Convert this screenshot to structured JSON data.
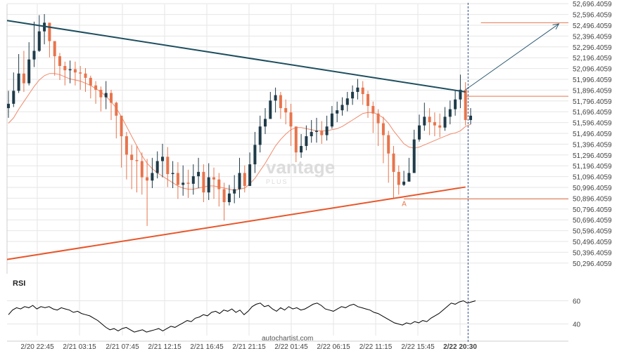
{
  "watermark": {
    "brand": "vantage",
    "sub": "PLUS"
  },
  "footer": {
    "source": "autochartist.com"
  },
  "colors": {
    "candle_up": "#1f3b49",
    "candle_down": "#e8744c",
    "resistance": "#1d4e5f",
    "support": "#e8562a",
    "ma": "#f08a6c",
    "level_line": "#e8744c",
    "projection": "#2d5b73",
    "rsi_line": "#000000",
    "grid": "#e6e6e6",
    "axis_text": "#444444",
    "now_line": "#2d4e8a"
  },
  "chart_data": [
    {
      "type": "candlestick",
      "title": "",
      "y_tick_labels": [
        "52,696.4059",
        "52,596.4059",
        "52,496.4059",
        "52,396.4059",
        "52,296.4059",
        "52,196.4059",
        "52,096.4059",
        "51,996.4059",
        "51,896.4059",
        "51,796.4059",
        "51,696.4059",
        "51,596.4059",
        "51,496.4059",
        "51,396.4059",
        "51,296.4059",
        "51,196.4059",
        "51,096.4059",
        "50,996.4059",
        "50,896.4059",
        "50,796.4059",
        "50,696.4059",
        "50,596.4059",
        "50,496.4059",
        "50,396.4059",
        "50,296.4059"
      ],
      "ylim": [
        50250,
        52740
      ],
      "x_tick_labels": [
        "2/20 22:45",
        "2/21 03:15",
        "2/21 07:45",
        "2/21 12:15",
        "2/21 16:45",
        "2/21 21:15",
        "2/22 01:45",
        "2/22 06:15",
        "2/22 11:15",
        "2/22 15:45",
        "2/22 20:30"
      ],
      "current_time_label": "2/22 20:30",
      "grid": true,
      "price_series": {
        "name": "",
        "close": [
          51770,
          51890,
          52050,
          51960,
          52180,
          52260,
          52440,
          52520,
          52350,
          52210,
          52120,
          52080,
          52090,
          52060,
          52050,
          52010,
          51940,
          51900,
          51830,
          51870,
          51780,
          51660,
          51470,
          51300,
          51250,
          51240,
          51090,
          51060,
          51130,
          51240,
          51280,
          51120,
          51130,
          51020,
          51040,
          51030,
          51100,
          51140,
          50950,
          51090,
          51070,
          50980,
          50860,
          50940,
          50980,
          51130,
          51010,
          51210,
          51390,
          51560,
          51630,
          51800,
          51850,
          51730,
          51690,
          51560,
          51320,
          51380,
          51470,
          51510,
          51520,
          51480,
          51560,
          51680,
          51710,
          51760,
          51820,
          51880,
          51920,
          51860,
          51750,
          51680,
          51590,
          51480,
          51310,
          51140,
          51020,
          51050,
          51130,
          51440,
          51570,
          51650,
          51600,
          51570,
          51550,
          51650,
          51720,
          51810,
          51900,
          51620,
          51660
        ],
        "high": [
          51890,
          52060,
          52230,
          52260,
          52340,
          52530,
          52590,
          52600,
          52450,
          52300,
          52240,
          52160,
          52170,
          52160,
          52120,
          52100,
          52030,
          51980,
          51930,
          51980,
          51900,
          51790,
          51620,
          51510,
          51390,
          51380,
          51320,
          51260,
          51270,
          51330,
          51400,
          51370,
          51240,
          51230,
          51200,
          51160,
          51210,
          51270,
          51210,
          51220,
          51180,
          51130,
          51040,
          51020,
          51110,
          51270,
          51200,
          51320,
          51510,
          51660,
          51730,
          51880,
          51920,
          51880,
          51810,
          51770,
          51550,
          51490,
          51570,
          51620,
          51640,
          51610,
          51660,
          51750,
          51790,
          51830,
          51880,
          51940,
          52000,
          51980,
          51890,
          51790,
          51720,
          51650,
          51520,
          51380,
          51200,
          51150,
          51270,
          51530,
          51670,
          51780,
          51730,
          51690,
          51680,
          51740,
          51800,
          51890,
          52040,
          51970,
          51730
        ],
        "low": [
          51640,
          51740,
          51870,
          51880,
          51940,
          52110,
          52250,
          52320,
          52200,
          52030,
          51990,
          51940,
          51960,
          51940,
          51900,
          51880,
          51820,
          51770,
          51700,
          51720,
          51620,
          51450,
          51180,
          51070,
          50980,
          50950,
          50930,
          50640,
          50990,
          51080,
          51090,
          51000,
          50990,
          50890,
          50920,
          50900,
          50930,
          50990,
          50860,
          50880,
          50890,
          50820,
          50690,
          50830,
          50850,
          50900,
          50950,
          51020,
          51130,
          51320,
          51490,
          51650,
          51690,
          51630,
          51580,
          51380,
          51230,
          51270,
          51340,
          51410,
          51410,
          51400,
          51430,
          51540,
          51600,
          51660,
          51700,
          51760,
          51810,
          51760,
          51640,
          51500,
          51380,
          51220,
          51040,
          50890,
          50930,
          51010,
          51060,
          51200,
          51420,
          51520,
          51480,
          51470,
          51460,
          51520,
          51580,
          51660,
          51730,
          51570,
          51580
        ]
      },
      "moving_average": [
        51590,
        51640,
        51720,
        51790,
        51860,
        51930,
        51990,
        52030,
        52050,
        52050,
        52040,
        52020,
        52000,
        51990,
        51980,
        51960,
        51940,
        51910,
        51880,
        51840,
        51790,
        51730,
        51650,
        51560,
        51470,
        51380,
        51290,
        51220,
        51170,
        51130,
        51100,
        51070,
        51040,
        51010,
        50990,
        50980,
        50980,
        50990,
        51000,
        51010,
        51010,
        51000,
        50990,
        50980,
        50970,
        50980,
        50990,
        51030,
        51080,
        51150,
        51220,
        51300,
        51380,
        51440,
        51490,
        51530,
        51550,
        51550,
        51540,
        51530,
        51520,
        51520,
        51520,
        51530,
        51540,
        51560,
        51590,
        51620,
        51650,
        51680,
        51690,
        51690,
        51670,
        51640,
        51590,
        51520,
        51460,
        51400,
        51370,
        51360,
        51370,
        51390,
        51410,
        51430,
        51450,
        51470,
        51490,
        51500,
        51520,
        51560,
        51580
      ],
      "resistance_line": {
        "start": [
          0,
          52540
        ],
        "end": [
          89,
          51880
        ]
      },
      "support_line": {
        "start": [
          0,
          50330
        ],
        "end": [
          89,
          51000
        ]
      },
      "levels": [
        {
          "price": 52520,
          "from_bar": 92
        },
        {
          "price": 51840,
          "from_bar": 89
        },
        {
          "price": 50890,
          "from_bar": 77,
          "label": "A"
        }
      ],
      "projection": {
        "from": [
          89,
          51900
        ],
        "to": [
          108,
          52510
        ]
      },
      "now_bar": 89.5
    },
    {
      "type": "line",
      "title": "RSI",
      "ylim": [
        30,
        70
      ],
      "y_tick_labels": [
        "60",
        "40"
      ],
      "y_ticks": [
        60,
        40
      ],
      "values": [
        48,
        52,
        54,
        53,
        55,
        54,
        56,
        53,
        55,
        54,
        55,
        53,
        52,
        54,
        53,
        52,
        50,
        51,
        49,
        48,
        47,
        45,
        43,
        40,
        37,
        35,
        36,
        34,
        36,
        37,
        35,
        33,
        34,
        35,
        33,
        34,
        35,
        36,
        34,
        36,
        38,
        37,
        39,
        41,
        43,
        42,
        45,
        46,
        48,
        47,
        50,
        51,
        49,
        52,
        51,
        53,
        50,
        52,
        48,
        51,
        55,
        57,
        58,
        55,
        56,
        53,
        51,
        54,
        52,
        55,
        53,
        54,
        52,
        53,
        55,
        57,
        58,
        56,
        53,
        52,
        51,
        53,
        55,
        54,
        56,
        57,
        55,
        54,
        53,
        52,
        50,
        49,
        47,
        45,
        43,
        41,
        40,
        39,
        41,
        40,
        42,
        41,
        43,
        42,
        45,
        47,
        49,
        52,
        55,
        58,
        57,
        59,
        60,
        58,
        59,
        60
      ]
    }
  ]
}
